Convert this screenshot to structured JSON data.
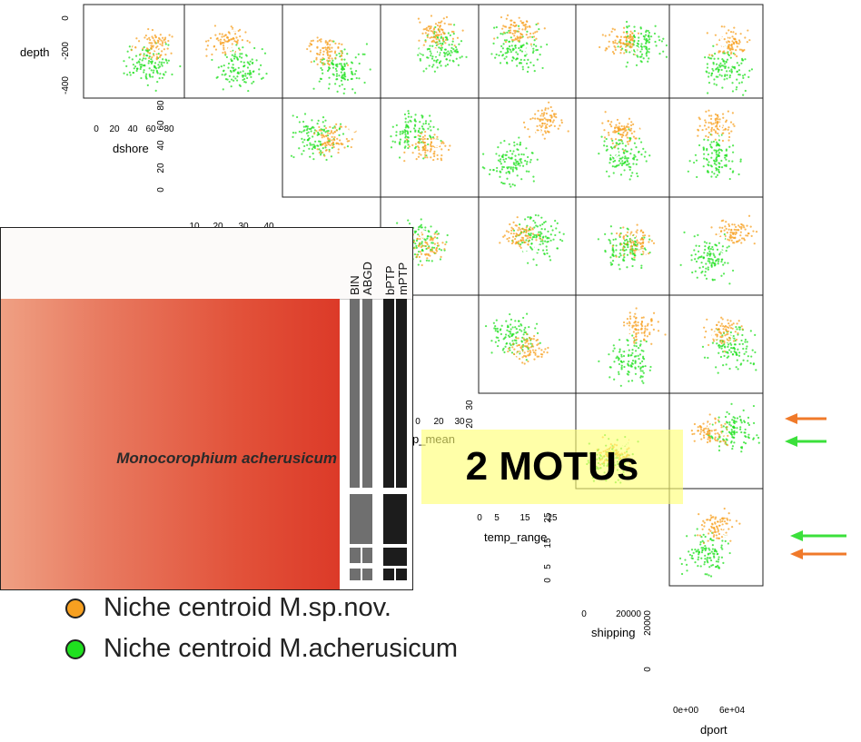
{
  "colors": {
    "sp_nov": "#f7a020",
    "acherusicum": "#1fe01f",
    "arrow_orange": "#f07a2a",
    "arrow_green": "#3be03b",
    "highlight": "#ffff73"
  },
  "chart_data": {
    "type": "scatter",
    "title": "",
    "matrix_type": "scatterplot-matrix",
    "variables": [
      "depth",
      "dshore",
      "temp_mean",
      "temp_range",
      "shipping",
      "dport"
    ],
    "series": [
      {
        "name": "Niche centroid M.sp.nov.",
        "color": "#f7a020"
      },
      {
        "name": "Niche centroid M.acherusicum",
        "color": "#1fe01f"
      }
    ],
    "axes": {
      "depth": {
        "ticks": [
          "0",
          "-200",
          "-400"
        ]
      },
      "dshore": {
        "ticks_x": [
          "0",
          "20",
          "40",
          "60",
          "80"
        ],
        "ticks_y": [
          "0",
          "20",
          "40",
          "60",
          "80"
        ]
      },
      "inner_x": {
        "ticks": [
          "10",
          "20",
          "30",
          "40"
        ]
      },
      "temp_mean": {
        "ticks_x": [
          "0",
          "20",
          "30"
        ],
        "ticks_y": [
          "20",
          "30"
        ]
      },
      "temp_range": {
        "ticks_x": [
          "0",
          "5",
          "15",
          "25"
        ],
        "ticks_y": [
          "5",
          "15",
          "25"
        ],
        "y_extra": "0"
      },
      "shipping": {
        "ticks_x": [
          "0",
          "20000"
        ],
        "ticks_y": [
          "0",
          "20000"
        ]
      },
      "dport": {
        "ticks": [
          "0e+00",
          "6e+04"
        ]
      }
    },
    "legend_placement": "bottom-left",
    "grid": false
  },
  "labels": {
    "depth": "depth",
    "dshore": "dshore",
    "temp_mean_partial": "p_mean",
    "temp_range": "temp_range",
    "shipping": "shipping",
    "dport": "dport",
    "depth_ticks": [
      "0",
      "-200",
      "-400"
    ],
    "dshore_xticks": [
      "0",
      "20",
      "40",
      "60",
      "80"
    ],
    "dshore_yticks": [
      "0",
      "20",
      "40",
      "60",
      "80"
    ],
    "inner_xticks": [
      "10",
      "20",
      "30",
      "40"
    ],
    "tmean_xticks": [
      "0",
      "20",
      "30"
    ],
    "tmean_yticks": [
      "20",
      "30"
    ],
    "trange_xticks": [
      "0",
      "5",
      "15",
      "25"
    ],
    "trange_yticks": [
      "25",
      "15",
      "5",
      "0"
    ],
    "ship_xticks": [
      "0",
      "20000"
    ],
    "ship_yticks": [
      "20000",
      "0"
    ],
    "dport_xticks": [
      "0e+00",
      "6e+04"
    ]
  },
  "inset": {
    "species": "Monocorophium acherusicum",
    "columns": [
      "BIN",
      "ABGD",
      "bPTP",
      "mPTP"
    ]
  },
  "highlight_text": "2 MOTUs",
  "legend": [
    {
      "label": "Niche centroid M.sp.nov.",
      "color": "#f7a020"
    },
    {
      "label": "Niche centroid M.acherusicum",
      "color": "#1fe01f"
    }
  ]
}
